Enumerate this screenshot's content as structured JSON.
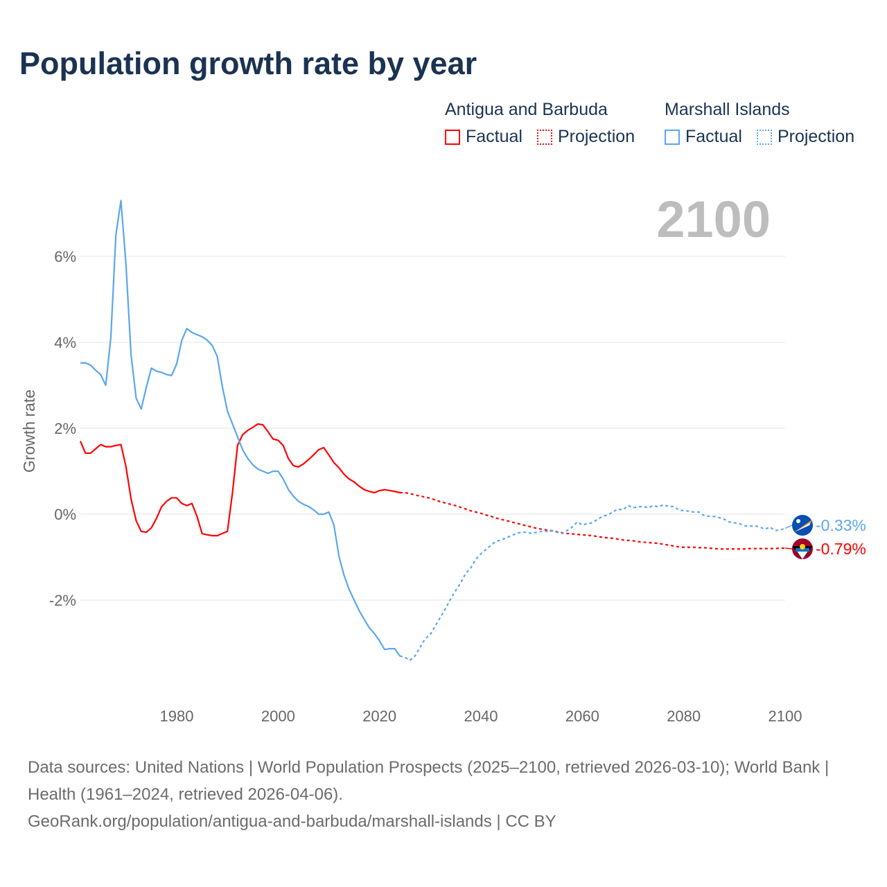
{
  "title": "Population growth rate by year",
  "legend": [
    {
      "country": "Antigua and Barbuda",
      "color": "#ff0000",
      "factual_label": "Factual",
      "projection_label": "Projection"
    },
    {
      "country": "Marshall Islands",
      "color": "#5aa6ee",
      "factual_label": "Factual",
      "projection_label": "Projection"
    }
  ],
  "year_label": "2100",
  "footer": {
    "sources": "Data sources: United Nations | World Population Prospects (2025–2100, retrieved 2026-03-10); World Bank | Health (1961–2024, retrieved 2026-04-06).",
    "link": "GeoRank.org/population/antigua-and-barbuda/marshall-islands | CC BY"
  },
  "chart_data": {
    "type": "line",
    "ylabel": "Growth rate",
    "xlabel": "",
    "xlim": [
      1961,
      2100
    ],
    "ylim": [
      -4.2,
      7.5
    ],
    "x_ticks": [
      {
        "v": 1980,
        "label": "1980"
      },
      {
        "v": 2000,
        "label": "2000"
      },
      {
        "v": 2020,
        "label": "2020"
      },
      {
        "v": 2040,
        "label": "2040"
      },
      {
        "v": 2060,
        "label": "2060"
      },
      {
        "v": 2080,
        "label": "2080"
      },
      {
        "v": 2100,
        "label": "2100"
      }
    ],
    "y_ticks": [
      {
        "v": 6,
        "label": "6%"
      },
      {
        "v": 4,
        "label": "4%"
      },
      {
        "v": 2,
        "label": "2%"
      },
      {
        "v": 0,
        "label": "0%"
      },
      {
        "v": -2,
        "label": "-2%"
      }
    ],
    "grid": true,
    "series": [
      {
        "name": "Antigua and Barbuda",
        "color": "#ff0000",
        "end_label": "-0.79%",
        "factual_start": 1961,
        "factual": [
          1.7,
          1.42,
          1.42,
          1.52,
          1.62,
          1.57,
          1.57,
          1.6,
          1.62,
          1.1,
          0.35,
          -0.15,
          -0.4,
          -0.42,
          -0.32,
          -0.1,
          0.17,
          0.3,
          0.38,
          0.38,
          0.25,
          0.2,
          0.25,
          -0.05,
          -0.45,
          -0.48,
          -0.5,
          -0.5,
          -0.45,
          -0.4,
          0.5,
          1.6,
          1.85,
          1.95,
          2.02,
          2.1,
          2.08,
          1.92,
          1.75,
          1.72,
          1.6,
          1.3,
          1.13,
          1.1,
          1.17,
          1.27,
          1.38,
          1.5,
          1.55,
          1.38,
          1.2,
          1.08,
          0.93,
          0.82,
          0.75,
          0.65,
          0.57,
          0.53,
          0.5,
          0.55,
          0.57,
          0.55,
          0.53,
          0.5
        ],
        "projection_start": 2025,
        "projection": [
          0.5,
          0.48,
          0.45,
          0.42,
          0.4,
          0.37,
          0.33,
          0.29,
          0.26,
          0.23,
          0.2,
          0.16,
          0.12,
          0.08,
          0.05,
          0.02,
          -0.02,
          -0.05,
          -0.09,
          -0.12,
          -0.15,
          -0.18,
          -0.21,
          -0.24,
          -0.27,
          -0.3,
          -0.33,
          -0.35,
          -0.37,
          -0.39,
          -0.41,
          -0.43,
          -0.45,
          -0.46,
          -0.47,
          -0.48,
          -0.49,
          -0.5,
          -0.52,
          -0.54,
          -0.55,
          -0.56,
          -0.58,
          -0.6,
          -0.61,
          -0.62,
          -0.64,
          -0.65,
          -0.66,
          -0.67,
          -0.68,
          -0.7,
          -0.72,
          -0.74,
          -0.76,
          -0.77,
          -0.77,
          -0.77,
          -0.78,
          -0.78,
          -0.79,
          -0.8,
          -0.81,
          -0.81,
          -0.81,
          -0.81,
          -0.81,
          -0.81,
          -0.8,
          -0.8,
          -0.8,
          -0.8,
          -0.8,
          -0.8,
          -0.79,
          -0.79
        ]
      },
      {
        "name": "Marshall Islands",
        "color": "#5aa6ee",
        "end_label": "-0.33%",
        "factual_start": 1961,
        "factual": [
          3.52,
          3.52,
          3.47,
          3.35,
          3.25,
          3.0,
          4.1,
          6.5,
          7.3,
          5.8,
          3.7,
          2.7,
          2.45,
          2.95,
          3.4,
          3.33,
          3.3,
          3.25,
          3.23,
          3.5,
          4.05,
          4.32,
          4.23,
          4.18,
          4.13,
          4.05,
          3.93,
          3.67,
          2.97,
          2.4,
          2.1,
          1.8,
          1.5,
          1.3,
          1.15,
          1.05,
          1.0,
          0.95,
          1.0,
          1.0,
          0.82,
          0.58,
          0.42,
          0.3,
          0.23,
          0.18,
          0.1,
          0.0,
          0.0,
          0.05,
          -0.25,
          -0.98,
          -1.42,
          -1.75,
          -2.0,
          -2.25,
          -2.45,
          -2.65,
          -2.78,
          -2.95,
          -3.15,
          -3.13,
          -3.13,
          -3.3
        ],
        "projection_start": 2025,
        "projection": [
          -3.33,
          -3.4,
          -3.3,
          -3.1,
          -2.9,
          -2.8,
          -2.6,
          -2.4,
          -2.2,
          -1.98,
          -1.78,
          -1.6,
          -1.38,
          -1.25,
          -1.05,
          -0.92,
          -0.82,
          -0.72,
          -0.63,
          -0.6,
          -0.55,
          -0.5,
          -0.45,
          -0.42,
          -0.42,
          -0.45,
          -0.42,
          -0.4,
          -0.4,
          -0.38,
          -0.42,
          -0.45,
          -0.38,
          -0.3,
          -0.18,
          -0.25,
          -0.22,
          -0.2,
          -0.12,
          -0.05,
          -0.02,
          0.05,
          0.12,
          0.1,
          0.2,
          0.15,
          0.17,
          0.18,
          0.15,
          0.2,
          0.17,
          0.22,
          0.18,
          0.18,
          0.1,
          0.08,
          0.07,
          0.05,
          0.05,
          -0.03,
          -0.05,
          -0.05,
          -0.08,
          -0.12,
          -0.18,
          -0.2,
          -0.22,
          -0.27,
          -0.28,
          -0.27,
          -0.3,
          -0.35,
          -0.3,
          -0.38,
          -0.37,
          -0.33
        ]
      }
    ]
  }
}
